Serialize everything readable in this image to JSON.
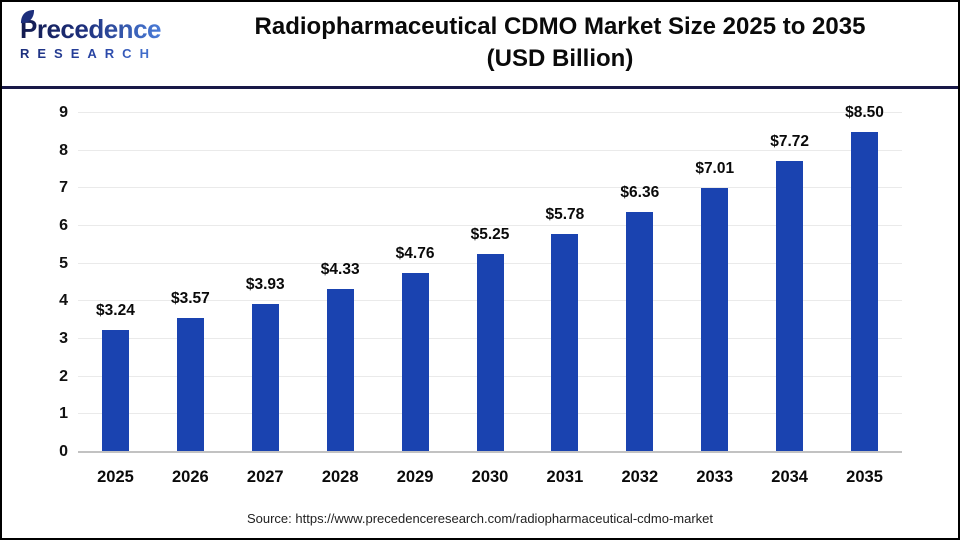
{
  "header": {
    "logo_line1": "Precedence",
    "logo_line2": "RESEARCH",
    "title_line1": "Radiopharmaceutical CDMO Market Size 2025 to 2035",
    "title_line2": "(USD Billion)"
  },
  "chart_data": {
    "type": "bar",
    "title": "Radiopharmaceutical CDMO Market Size 2025 to 2035 (USD Billion)",
    "categories": [
      "2025",
      "2026",
      "2027",
      "2028",
      "2029",
      "2030",
      "2031",
      "2032",
      "2033",
      "2034",
      "2035"
    ],
    "values": [
      3.24,
      3.57,
      3.93,
      4.33,
      4.76,
      5.25,
      5.78,
      6.36,
      7.01,
      7.72,
      8.5
    ],
    "value_label_prefix": "$",
    "xlabel": "",
    "ylabel": "",
    "ylim": [
      0,
      9
    ],
    "ytick_interval": 1,
    "grid": "horizontal",
    "legend": "none",
    "bar_color": "#1A43B0"
  },
  "colors": {
    "bar": "#1A43B0",
    "header_divider": "#181847",
    "gridline": "#eaeaea",
    "axis_baseline": "#c2c2c2",
    "logo_navy": "#1d2f7c",
    "logo_light_blue": "#4a7cd8"
  },
  "footer": {
    "source": "Source: https://www.precedenceresearch.com/radiopharmaceutical-cdmo-market"
  }
}
